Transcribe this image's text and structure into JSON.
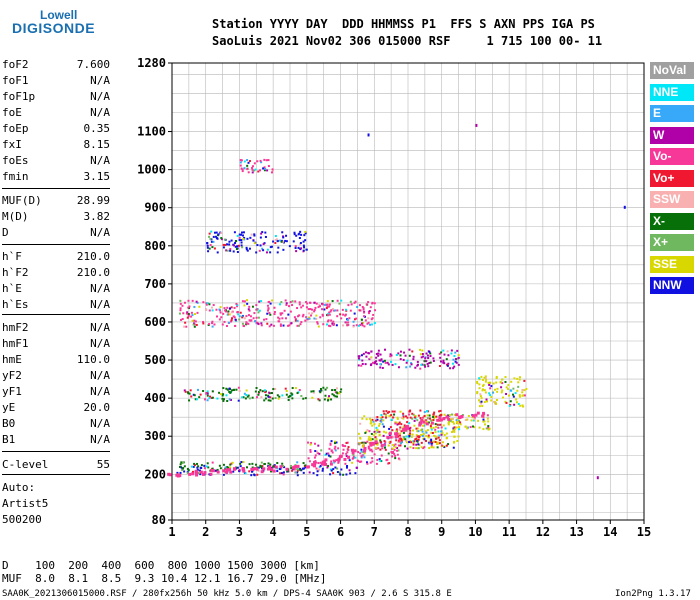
{
  "logo": {
    "line1": "Lowell",
    "line2": "DIGISONDE"
  },
  "header": {
    "line1": "Station YYYY DAY  DDD HHMMSS P1  FFS S AXN PPS IGA PS",
    "line2": "SaoLuis 2021 Nov02 306 015000 RSF     1 715 100 00- 11"
  },
  "params": [
    {
      "label": "foF2",
      "value": "7.600"
    },
    {
      "label": "foF1",
      "value": "N/A"
    },
    {
      "label": "foF1p",
      "value": "N/A"
    },
    {
      "label": "foE",
      "value": "N/A"
    },
    {
      "label": "foEp",
      "value": "0.35"
    },
    {
      "label": "fxI",
      "value": "8.15"
    },
    {
      "label": "foEs",
      "value": "N/A"
    },
    {
      "label": "fmin",
      "value": "3.15"
    },
    {
      "label": "MUF(D)",
      "value": "28.99"
    },
    {
      "label": "M(D)",
      "value": "3.82"
    },
    {
      "label": "D",
      "value": "N/A"
    },
    {
      "label": "h`F",
      "value": "210.0"
    },
    {
      "label": "h`F2",
      "value": "210.0"
    },
    {
      "label": "h`E",
      "value": "N/A"
    },
    {
      "label": "h`Es",
      "value": "N/A"
    },
    {
      "label": "hmF2",
      "value": "N/A"
    },
    {
      "label": "hmF1",
      "value": "N/A"
    },
    {
      "label": "hmE",
      "value": "110.0"
    },
    {
      "label": "yF2",
      "value": "N/A"
    },
    {
      "label": "yF1",
      "value": "N/A"
    },
    {
      "label": "yE",
      "value": "20.0"
    },
    {
      "label": "B0",
      "value": "N/A"
    },
    {
      "label": "B1",
      "value": "N/A"
    },
    {
      "label": "C-level",
      "value": "55"
    }
  ],
  "auto": {
    "line1": "Auto:",
    "line2": "Artist5",
    "line3": "500200"
  },
  "legend": [
    {
      "label": "NoVal",
      "color": "#a0a0a0"
    },
    {
      "label": "NNE",
      "color": "#00e8f8"
    },
    {
      "label": "E",
      "color": "#38a8f8"
    },
    {
      "label": "W",
      "color": "#b000a8"
    },
    {
      "label": "Vo-",
      "color": "#f83898"
    },
    {
      "label": "Vo+",
      "color": "#f01830"
    },
    {
      "label": "SSW",
      "color": "#f8b0b0"
    },
    {
      "label": "X-",
      "color": "#087008"
    },
    {
      "label": "X+",
      "color": "#70b860"
    },
    {
      "label": "SSE",
      "color": "#d8d800"
    },
    {
      "label": "NNW",
      "color": "#1010e0"
    }
  ],
  "footer": {
    "d_row": "D    100  200  400  600  800 1000 1500 3000 [km]",
    "muf_row": "MUF  8.0  8.1  8.5  9.3 10.4 12.1 16.7 29.0 [MHz]",
    "info": "SAA0K_2021306015000.RSF / 280fx256h 50 kHz 5.0 km / DPS-4 SAA0K 903 / 2.6 S 315.8 E",
    "version": "Ion2Png 1.3.17"
  },
  "chart_data": {
    "type": "scatter",
    "xlabel": "",
    "ylabel": "",
    "x_ticks": [
      1,
      2,
      3,
      4,
      5,
      6,
      7,
      8,
      9,
      10,
      11,
      12,
      13,
      14,
      15
    ],
    "y_ticks": [
      80,
      200,
      300,
      400,
      500,
      600,
      700,
      800,
      900,
      1000,
      1100,
      1280
    ],
    "xlim": [
      1,
      15
    ],
    "ylim": [
      80,
      1280
    ],
    "grid": true,
    "trace_x": [
      1.0,
      1.5,
      2.0,
      2.5,
      3.0,
      3.5,
      4.0,
      4.5,
      5.0,
      5.5,
      6.0,
      6.5,
      7.0,
      7.5,
      8.0,
      8.5,
      9.0,
      9.5,
      10.0
    ],
    "trace_y": [
      205,
      207,
      209,
      211,
      213,
      216,
      219,
      223,
      228,
      236,
      248,
      265,
      285,
      305,
      325,
      340,
      350,
      355,
      360
    ],
    "echo_clusters": [
      {
        "x": [
          1.1,
          6.5
        ],
        "y": [
          200,
          225
        ],
        "direction": "NNW"
      },
      {
        "x": [
          1.2,
          5.0
        ],
        "y": [
          210,
          235
        ],
        "direction": "X-"
      },
      {
        "x": [
          5.0,
          7.8
        ],
        "y": [
          230,
          290
        ],
        "direction": "Vo-"
      },
      {
        "x": [
          6.5,
          9.5
        ],
        "y": [
          270,
          360
        ],
        "direction": "SSE"
      },
      {
        "x": [
          7.0,
          9.0
        ],
        "y": [
          280,
          370
        ],
        "direction": "Vo+"
      },
      {
        "x": [
          9.0,
          10.4
        ],
        "y": [
          320,
          360
        ],
        "direction": "SSE"
      },
      {
        "x": [
          10.0,
          11.5
        ],
        "y": [
          380,
          460
        ],
        "direction": "SSE"
      },
      {
        "x": [
          1.2,
          6.0
        ],
        "y": [
          395,
          430
        ],
        "direction": "X-"
      },
      {
        "x": [
          6.5,
          9.5
        ],
        "y": [
          480,
          530
        ],
        "direction": "W"
      },
      {
        "x": [
          1.2,
          7.0
        ],
        "y": [
          590,
          660
        ],
        "direction": "Vo-"
      },
      {
        "x": [
          2.0,
          5.0
        ],
        "y": [
          785,
          840
        ],
        "direction": "NNW"
      },
      {
        "x": [
          3.0,
          4.0
        ],
        "y": [
          995,
          1030
        ],
        "direction": "Vo-"
      }
    ],
    "isolated_points": [
      {
        "x": 10.0,
        "y": 1120,
        "direction": "W"
      },
      {
        "x": 6.8,
        "y": 1095,
        "direction": "NNW"
      },
      {
        "x": 14.4,
        "y": 905,
        "direction": "NNW"
      },
      {
        "x": 13.6,
        "y": 195,
        "direction": "W"
      }
    ]
  }
}
